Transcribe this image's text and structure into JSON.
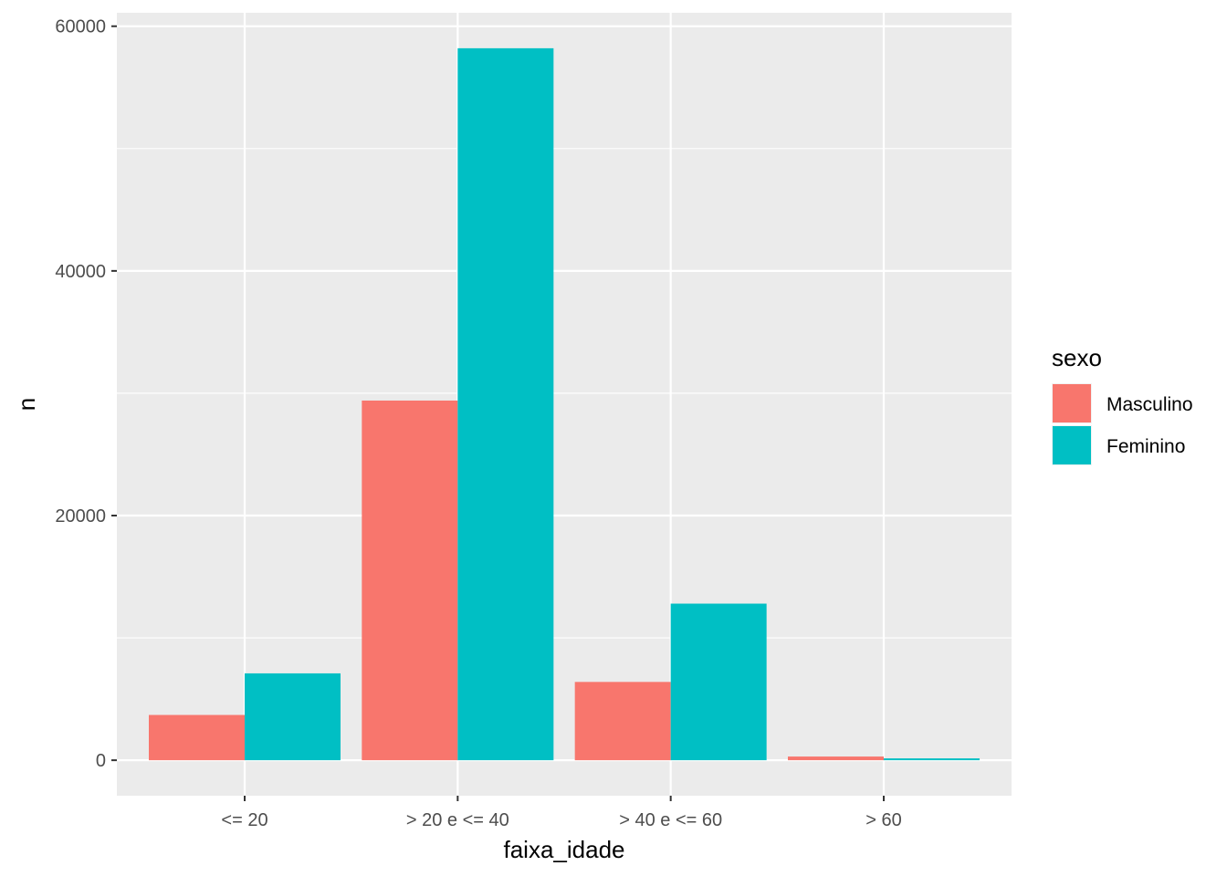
{
  "chart_data": {
    "type": "bar",
    "categories": [
      "<= 20",
      "> 20 e <= 40",
      "> 40 e <= 60",
      "> 60"
    ],
    "series": [
      {
        "name": "Masculino",
        "color": "#F8766D",
        "values": [
          3700,
          29400,
          6400,
          300
        ]
      },
      {
        "name": "Feminino",
        "color": "#00BFC4",
        "values": [
          7100,
          58200,
          12800,
          150
        ]
      }
    ],
    "xlabel": "faixa_idade",
    "ylabel": "n",
    "ylim": [
      -2900,
      61100
    ],
    "yticks": [
      0,
      20000,
      40000,
      60000
    ],
    "yticks_labels": [
      "0",
      "20000",
      "40000",
      "60000"
    ],
    "legend": {
      "title": "sexo",
      "position": "right"
    },
    "grid": true,
    "panel_background": "#EBEBEB",
    "grid_color": "#FFFFFF"
  }
}
